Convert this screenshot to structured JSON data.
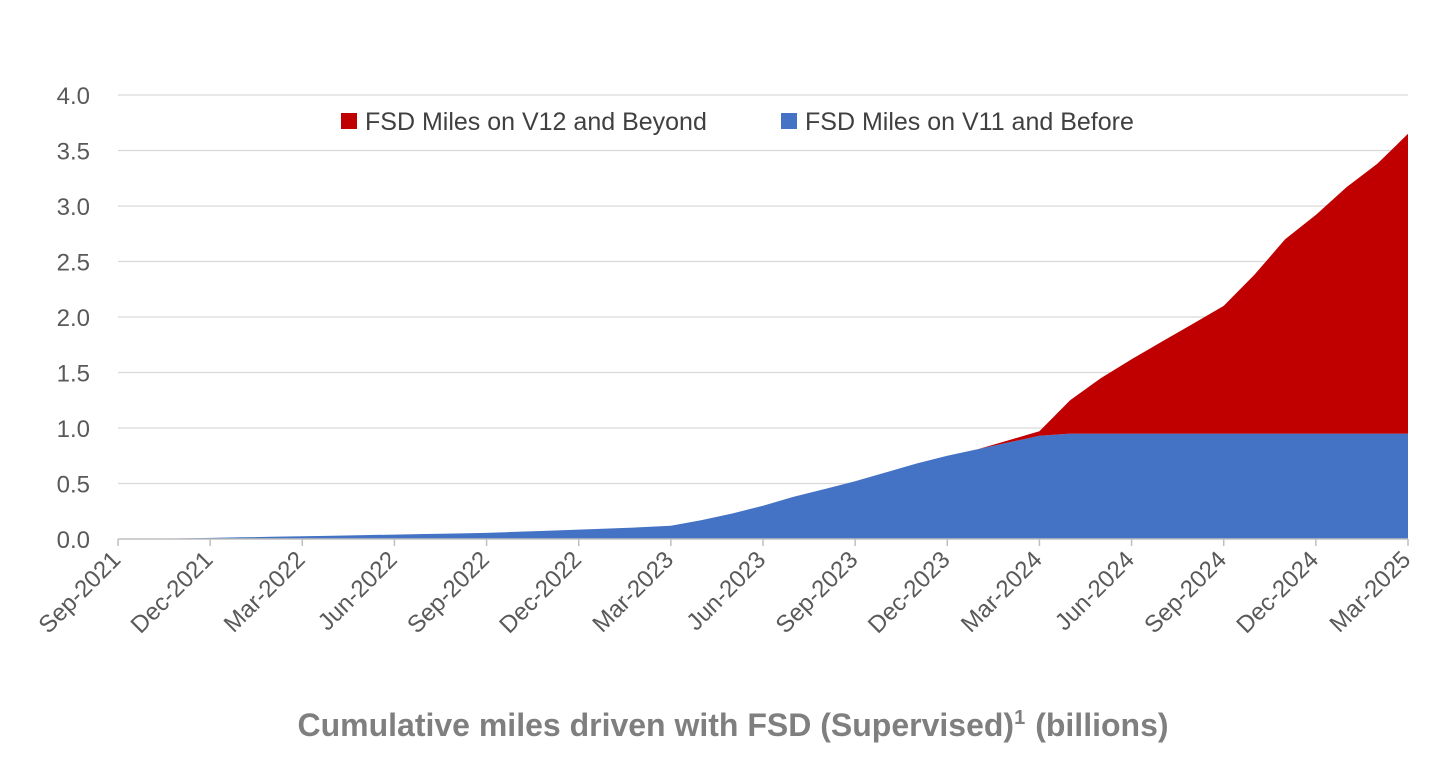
{
  "chart_data": {
    "type": "area",
    "stacked": true,
    "title": "Cumulative miles driven with FSD (Supervised)",
    "title_superscript": "1",
    "title_unit": "(billions)",
    "xlabel": "",
    "ylabel": "",
    "ylim": [
      0,
      4.0
    ],
    "y_ticks": [
      "0.0",
      "0.5",
      "1.0",
      "1.5",
      "2.0",
      "2.5",
      "3.0",
      "3.5",
      "4.0"
    ],
    "x_tick_labels": [
      "Sep-2021",
      "Dec-2021",
      "Mar-2022",
      "Jun-2022",
      "Sep-2022",
      "Dec-2022",
      "Mar-2023",
      "Jun-2023",
      "Sep-2023",
      "Dec-2023",
      "Mar-2024",
      "Jun-2024",
      "Sep-2024",
      "Dec-2024",
      "Mar-2025"
    ],
    "grid": true,
    "legend_position": "top-center",
    "x": [
      "Sep-2021",
      "Oct-2021",
      "Nov-2021",
      "Dec-2021",
      "Jan-2022",
      "Feb-2022",
      "Mar-2022",
      "Apr-2022",
      "May-2022",
      "Jun-2022",
      "Jul-2022",
      "Aug-2022",
      "Sep-2022",
      "Oct-2022",
      "Nov-2022",
      "Dec-2022",
      "Jan-2023",
      "Feb-2023",
      "Mar-2023",
      "Apr-2023",
      "May-2023",
      "Jun-2023",
      "Jul-2023",
      "Aug-2023",
      "Sep-2023",
      "Oct-2023",
      "Nov-2023",
      "Dec-2023",
      "Jan-2024",
      "Feb-2024",
      "Mar-2024",
      "Apr-2024",
      "May-2024",
      "Jun-2024",
      "Jul-2024",
      "Aug-2024",
      "Sep-2024",
      "Oct-2024",
      "Nov-2024",
      "Dec-2024",
      "Jan-2025",
      "Feb-2025",
      "Mar-2025"
    ],
    "series": [
      {
        "name": "FSD Miles on V11 and Before",
        "color": "#4472C4",
        "values": [
          0.0,
          0.0,
          0.005,
          0.01,
          0.015,
          0.02,
          0.025,
          0.03,
          0.035,
          0.04,
          0.045,
          0.05,
          0.055,
          0.065,
          0.075,
          0.085,
          0.095,
          0.105,
          0.12,
          0.17,
          0.23,
          0.3,
          0.38,
          0.45,
          0.52,
          0.6,
          0.68,
          0.75,
          0.81,
          0.87,
          0.93,
          0.95,
          0.95,
          0.95,
          0.95,
          0.95,
          0.95,
          0.95,
          0.95,
          0.95,
          0.95,
          0.95,
          0.95
        ]
      },
      {
        "name": "FSD Miles on V12 and Beyond",
        "color": "#C00000",
        "values": [
          0,
          0,
          0,
          0,
          0,
          0,
          0,
          0,
          0,
          0,
          0,
          0,
          0,
          0,
          0,
          0,
          0,
          0,
          0,
          0,
          0,
          0,
          0,
          0,
          0,
          0,
          0,
          0,
          0,
          0.02,
          0.04,
          0.3,
          0.5,
          0.67,
          0.83,
          0.99,
          1.15,
          1.43,
          1.75,
          1.97,
          2.22,
          2.43,
          2.7
        ]
      }
    ],
    "legend": [
      {
        "name": "FSD Miles on V12 and Beyond",
        "color": "#C00000"
      },
      {
        "name": "FSD Miles on V11 and Before",
        "color": "#4472C4"
      }
    ]
  }
}
